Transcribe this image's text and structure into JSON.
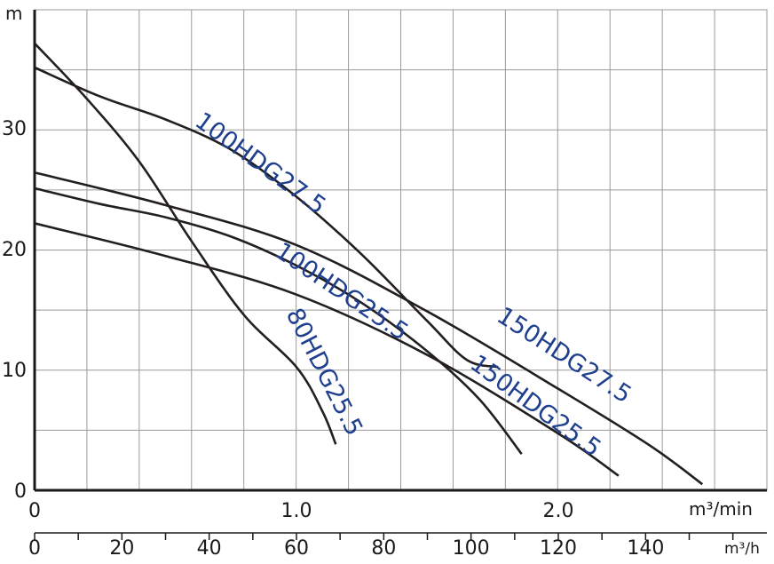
{
  "chart_data": {
    "type": "line",
    "title": "",
    "ylabel": "m",
    "xlabel": "m³/min",
    "xlabel_secondary": "m³/h",
    "xlim": [
      0,
      2.75
    ],
    "ylim": [
      0,
      39
    ],
    "x_ticks": [
      "0",
      "1.0",
      "2.0"
    ],
    "x_tick_values": [
      0,
      1.0,
      2.0
    ],
    "x2_ticks": [
      "0",
      "20",
      "40",
      "60",
      "80",
      "100",
      "120",
      "140"
    ],
    "x2_tick_values": [
      0,
      20,
      40,
      60,
      80,
      100,
      120,
      140
    ],
    "y_ticks": [
      "0",
      "10",
      "20",
      "30"
    ],
    "y_tick_values": [
      0,
      10,
      20,
      30
    ],
    "grid": true,
    "series": [
      {
        "name": "100HDG27.5",
        "x": [
          0,
          0.25,
          0.5,
          0.75,
          1.0,
          1.25,
          1.5,
          1.65,
          1.77
        ],
        "y": [
          35,
          32.6,
          30.7,
          28.2,
          24.3,
          19.5,
          14.0,
          10.8,
          10.2
        ]
      },
      {
        "name": "100HDG25.5",
        "x": [
          0,
          0.25,
          0.5,
          0.75,
          1.0,
          1.25,
          1.5,
          1.7,
          1.86
        ],
        "y": [
          25.0,
          23.7,
          22.6,
          21.0,
          18.6,
          15.5,
          11.5,
          7.5,
          3.0
        ]
      },
      {
        "name": "150HDG27.5",
        "x": [
          0,
          0.5,
          1.0,
          1.5,
          2.0,
          2.35,
          2.55
        ],
        "y": [
          26.3,
          23.6,
          20.3,
          14.8,
          8.4,
          3.7,
          0.5
        ]
      },
      {
        "name": "150HDG25.5",
        "x": [
          0,
          0.5,
          1.0,
          1.5,
          2.0,
          2.23
        ],
        "y": [
          22.1,
          19.4,
          16.2,
          11.2,
          4.7,
          1.2
        ]
      },
      {
        "name": "80HDG25.5",
        "x": [
          0,
          0.2,
          0.4,
          0.6,
          0.8,
          1.0,
          1.1,
          1.15
        ],
        "y": [
          37.0,
          32.4,
          27.2,
          20.6,
          14.5,
          10.2,
          6.5,
          3.8
        ]
      }
    ]
  }
}
